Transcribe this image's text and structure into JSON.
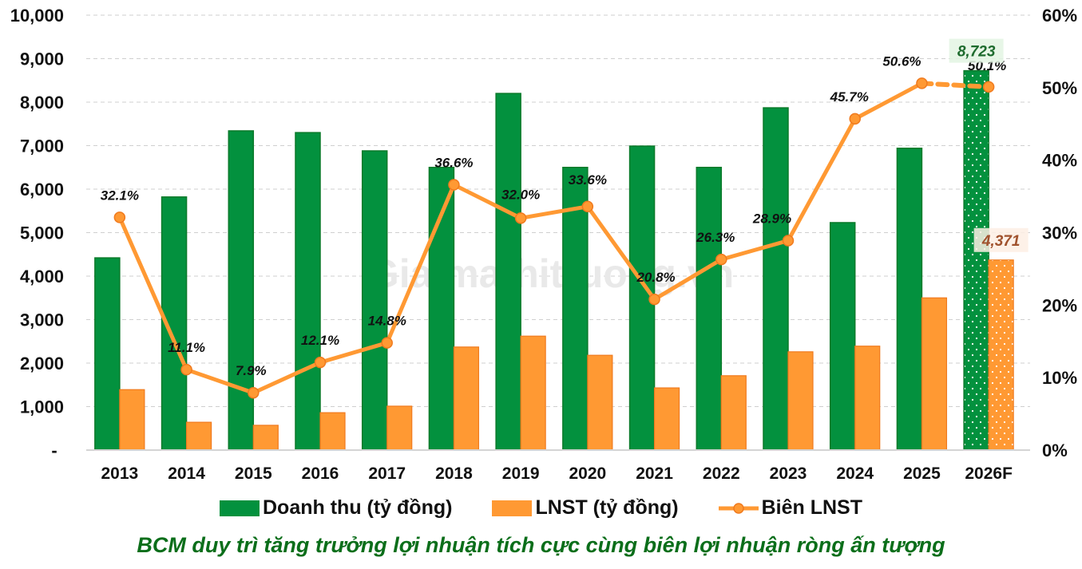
{
  "chart_data": {
    "type": "bar",
    "title": "BCM duy trì tăng trưởng lợi nhuận tích cực cùng biên lợi nhuận ròng ấn tượng",
    "watermark": "Giaimathitruong.vn",
    "categories": [
      "2013",
      "2014",
      "2015",
      "2016",
      "2017",
      "2018",
      "2019",
      "2020",
      "2021",
      "2022",
      "2023",
      "2024",
      "2025",
      "2026F"
    ],
    "forecast_categories": [
      "2026F"
    ],
    "series": [
      {
        "name": "Doanh thu (tỷ đồng)",
        "type": "bar",
        "axis": "left",
        "color": "#03913E",
        "values": [
          4420,
          5820,
          7340,
          7300,
          6880,
          6500,
          8200,
          6500,
          6990,
          6500,
          7870,
          5230,
          6940,
          8723
        ],
        "labeled_value": {
          "category": "2026F",
          "text": "8,723",
          "color": "#1E6B2E",
          "bg": "#E3F4E3"
        }
      },
      {
        "name": "LNST (tỷ đồng)",
        "type": "bar",
        "axis": "left",
        "color": "#FF9933",
        "values": [
          1390,
          640,
          570,
          860,
          1010,
          2370,
          2620,
          2180,
          1430,
          1710,
          2260,
          2390,
          3500,
          4371
        ],
        "labeled_value": {
          "category": "2026F",
          "text": "4,371",
          "color": "#A0522D",
          "bg": "#FDEEE4"
        }
      },
      {
        "name": "Biên LNST",
        "type": "line",
        "axis": "right",
        "color": "#FF9933",
        "values": [
          32.1,
          11.1,
          7.9,
          12.1,
          14.8,
          36.6,
          32.0,
          33.6,
          20.8,
          26.3,
          28.9,
          45.7,
          50.6,
          50.1
        ],
        "labels": [
          "32.1%",
          "11.1%",
          "7.9%",
          "12.1%",
          "14.8%",
          "36.6%",
          "32.0%",
          "33.6%",
          "20.8%",
          "26.3%",
          "28.9%",
          "45.7%",
          "50.6%",
          "50.1%"
        ],
        "dashed_last_segment": true
      }
    ],
    "y_left": {
      "min": 0,
      "max": 10000,
      "step": 1000,
      "tick_labels": [
        "-",
        "1,000",
        "2,000",
        "3,000",
        "4,000",
        "5,000",
        "6,000",
        "7,000",
        "8,000",
        "9,000",
        "10,000"
      ]
    },
    "y_right": {
      "min": 0,
      "max": 60,
      "step": 10,
      "tick_labels": [
        "0%",
        "10%",
        "20%",
        "30%",
        "40%",
        "50%",
        "60%"
      ]
    },
    "xlabel": "",
    "ylabel": "",
    "grid": true,
    "legend_position": "bottom",
    "title_position": "bottom",
    "title_color": "#0B6E1A"
  }
}
